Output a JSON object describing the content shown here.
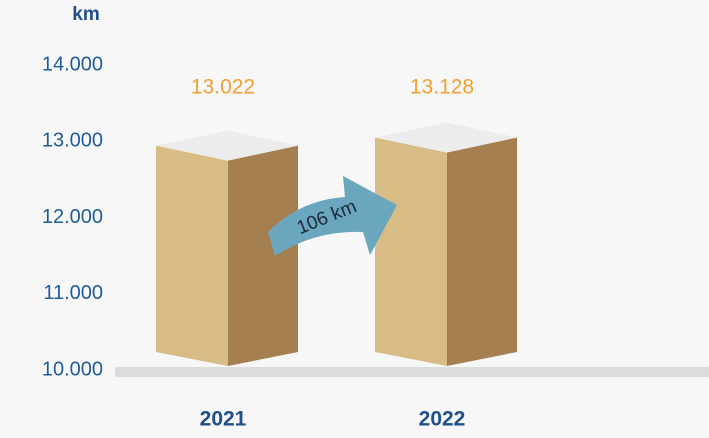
{
  "chart_data": {
    "type": "bar3d",
    "y_axis_label": "km",
    "categories": [
      "2021",
      "2022"
    ],
    "values": [
      13022,
      13128
    ],
    "value_labels": [
      "13.022",
      "13.128"
    ],
    "ylim": [
      10000,
      14000
    ],
    "yticks": [
      {
        "value": 10000,
        "label": "10.000"
      },
      {
        "value": 11000,
        "label": "11.000"
      },
      {
        "value": 12000,
        "label": "12.000"
      },
      {
        "value": 13000,
        "label": "13.000"
      },
      {
        "value": 14000,
        "label": "14.000"
      }
    ],
    "colors": {
      "front": "#d8bc85",
      "side": "#a67f50",
      "top": "#ececec"
    },
    "annotation": "106 km"
  }
}
